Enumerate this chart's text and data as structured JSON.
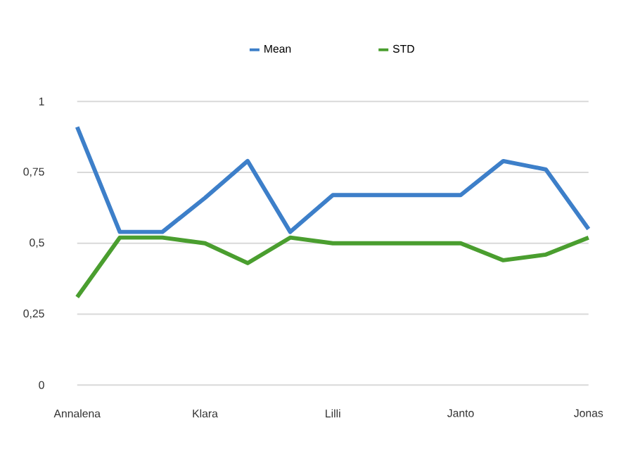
{
  "chart_data": {
    "type": "line",
    "categories": [
      "Annalena",
      null,
      null,
      "Klara",
      null,
      null,
      "Lilli",
      null,
      null,
      "Janto",
      null,
      null,
      "Jonas"
    ],
    "series": [
      {
        "name": "Mean",
        "color": "#3d7fc9",
        "values": [
          0.91,
          0.54,
          0.54,
          0.66,
          0.79,
          0.54,
          0.67,
          0.67,
          0.67,
          0.67,
          0.79,
          0.76,
          0.55
        ]
      },
      {
        "name": "STD",
        "color": "#4a9e2f",
        "values": [
          0.31,
          0.52,
          0.52,
          0.5,
          0.43,
          0.52,
          0.5,
          0.5,
          0.5,
          0.5,
          0.44,
          0.46,
          0.52
        ]
      }
    ],
    "ylim": [
      0,
      1
    ],
    "yticks": [
      0,
      {
        "value": 0.25,
        "label": "0,25"
      },
      {
        "value": 0.5,
        "label": "0,5"
      },
      {
        "value": 0.75,
        "label": "0,75"
      },
      1
    ],
    "grid": "y",
    "legend": "top",
    "marker": "none",
    "line_style": "solid"
  }
}
